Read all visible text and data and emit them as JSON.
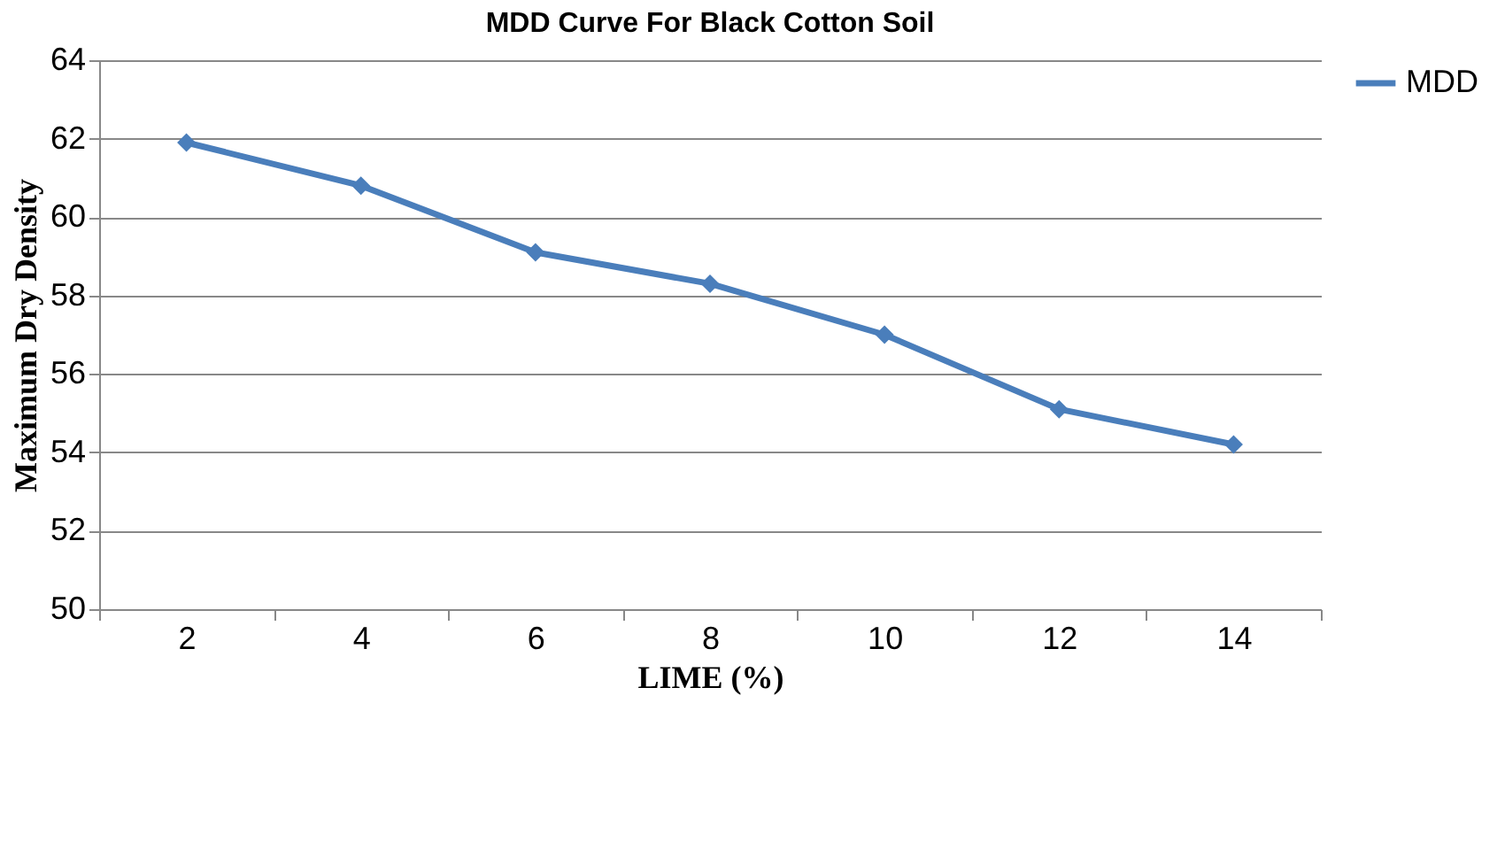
{
  "chart_data": {
    "type": "line",
    "title": "MDD Curve For Black Cotton Soil",
    "xlabel": "LIME (%)",
    "ylabel": "Maximum Dry Density",
    "categories": [
      "2",
      "4",
      "6",
      "8",
      "10",
      "12",
      "14"
    ],
    "series": [
      {
        "name": "MDD",
        "color": "#4a7ebb",
        "values": [
          61.9,
          60.8,
          59.1,
          58.3,
          57.0,
          55.1,
          54.2
        ]
      }
    ],
    "ylim": [
      50,
      64
    ],
    "yticks": [
      50,
      52,
      54,
      56,
      58,
      60,
      62,
      64
    ],
    "grid": "y",
    "legend": "right",
    "marker": "diamond",
    "line_style": "solid"
  }
}
